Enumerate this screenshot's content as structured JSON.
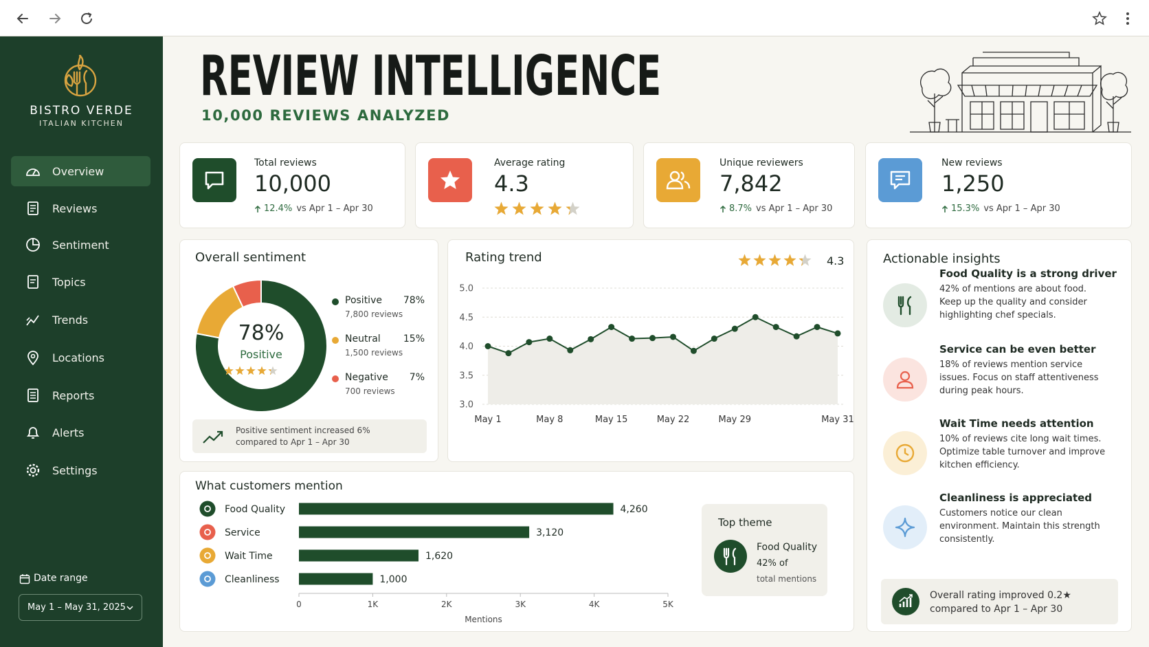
{
  "sidebar": {
    "brand": "BISTRO VERDE",
    "tagline": "ITALIAN KITCHEN",
    "nav": [
      "Overview",
      "Reviews",
      "Sentiment",
      "Topics",
      "Trends",
      "Locations",
      "Reports",
      "Alerts",
      "Settings"
    ],
    "date_range_label": "Date range",
    "date_range": "May 1 – May 31, 2025"
  },
  "header": {
    "title": "REVIEW INTELLIGENCE",
    "subtitle": "10,000 REVIEWS ANALYZED"
  },
  "kpis": [
    {
      "label": "Total reviews",
      "value": "10,000",
      "change": "12.4%",
      "comparison": "vs Apr 1 – Apr 30"
    },
    {
      "label": "Average rating",
      "value": 4.3
    },
    {
      "label": "Unique reviewers",
      "value": "7,842",
      "change": "8.7%",
      "comparison": "vs Apr 1 – Apr 30"
    },
    {
      "label": "New reviews",
      "value": "1,250",
      "change": "15.3%",
      "comparison": "vs Apr 1 – Apr 30"
    }
  ],
  "sentiment": {
    "title": "Overall sentiment",
    "rating": 4.3,
    "chart": {
      "type": "donut",
      "categories": [
        "Positive",
        "Neutral",
        "Negative"
      ],
      "values": [
        78,
        15,
        7
      ],
      "value_labels": [
        "78%",
        "15%",
        "7%"
      ],
      "colors": [
        "#1f4d2b",
        "#e8a935",
        "#e8604c"
      ]
    },
    "details": [
      "7,800 reviews",
      "1,500 reviews",
      "700 reviews"
    ],
    "note": [
      "Positive sentiment increased 6%",
      "compared to Apr 1 – Apr 30"
    ]
  },
  "rating_trend": {
    "title": "Rating trend",
    "rating": 4.3,
    "chart": {
      "type": "line",
      "categories": [
        "May 1",
        null,
        null,
        "May 8",
        null,
        null,
        "May 15",
        null,
        null,
        "May 22",
        null,
        null,
        "May 29",
        null,
        null,
        null,
        null,
        "May 31"
      ],
      "values": [
        4.0,
        3.88,
        4.07,
        4.13,
        3.93,
        4.12,
        4.33,
        4.13,
        4.14,
        4.16,
        3.92,
        4.13,
        4.3,
        4.5,
        4.33,
        4.17,
        4.33,
        4.22
      ],
      "color": "#1f4d2b",
      "ylim": [
        3,
        5
      ],
      "yticks": [
        {
          "value": 3,
          "label": "3.0"
        },
        {
          "value": 3.5,
          "label": "3.5"
        },
        {
          "value": 4,
          "label": "4.0"
        },
        {
          "value": 4.5,
          "label": "4.5"
        },
        {
          "value": 5,
          "label": "5.0"
        }
      ],
      "grid": true
    }
  },
  "mentions": {
    "title": "What customers mention",
    "chart": {
      "type": "bar",
      "orientation": "horizontal",
      "categories": [
        "Food Quality",
        "Service",
        "Wait Time",
        "Cleanliness"
      ],
      "values": [
        4260,
        3120,
        1620,
        1000
      ],
      "value_labels": [
        "4,260",
        "3,120",
        "1,620",
        "1,000"
      ],
      "color": "#1f4d2b",
      "icon_colors": [
        "#1f4d2b",
        "#e8604c",
        "#e8a935",
        "#5b9bd5"
      ],
      "xlim": [
        0,
        5000
      ],
      "xticks": [
        0,
        {
          "value": 1000,
          "label": "1K"
        },
        {
          "value": 2000,
          "label": "2K"
        },
        {
          "value": 3000,
          "label": "3K"
        },
        {
          "value": 4000,
          "label": "4K"
        },
        {
          "value": 5000,
          "label": "5K"
        }
      ],
      "xlabel": "Mentions"
    },
    "top_theme": {
      "title": "Top theme",
      "share": "42% of",
      "detail": "total mentions"
    }
  },
  "insights": {
    "title": "Actionable insights",
    "items": [
      {
        "title": "Food Quality is a strong driver",
        "text": "42% of mentions are about food. Keep up the quality and consider highlighting chef specials."
      },
      {
        "title": "Service can be even better",
        "text": "18% of reviews mention service issues. Focus on staff attentiveness during peak hours."
      },
      {
        "title": "Wait Time needs attention",
        "text": "10% of reviews cite long wait times. Optimize table turnover and improve kitchen efficiency."
      },
      {
        "title": "Cleanliness is appreciated",
        "text": "Customers notice our clean environment. Maintain this strength consistently."
      }
    ],
    "footer": [
      "Overall rating improved 0.2★",
      "compared to Apr 1 – Apr 30"
    ]
  }
}
